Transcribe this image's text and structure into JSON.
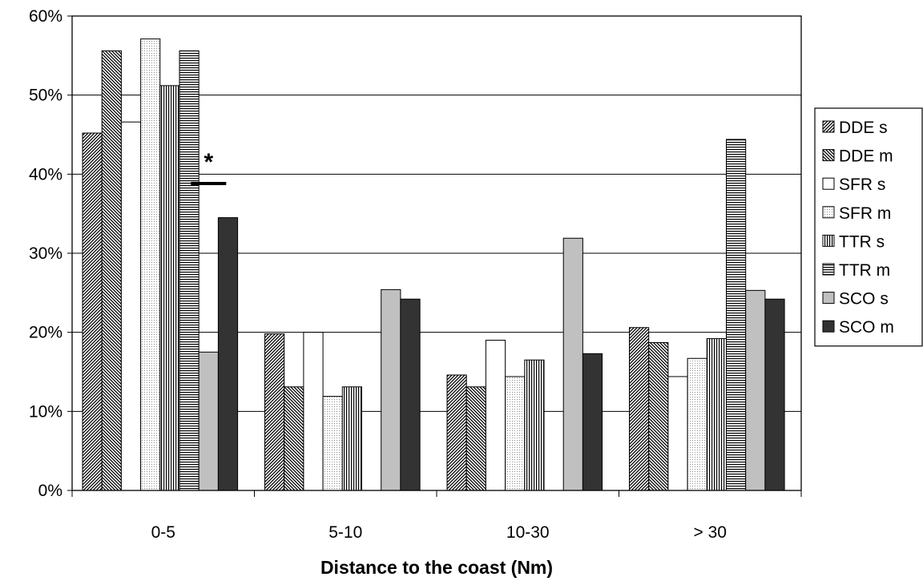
{
  "chart_data": {
    "type": "bar",
    "title": "",
    "xlabel": "Distance to the coast (Nm)",
    "ylabel": "",
    "categories": [
      "0-5",
      "5-10",
      "10-30",
      "> 30"
    ],
    "ylim": [
      0,
      60
    ],
    "yticks": [
      "0%",
      "10%",
      "20%",
      "30%",
      "40%",
      "50%",
      "60%"
    ],
    "grid": "horizontal",
    "legend_position": "right",
    "series": [
      {
        "name": "DDE s",
        "values": [
          45.2,
          19.8,
          14.6,
          20.6
        ],
        "fill": "hatch-fwd"
      },
      {
        "name": "DDE m",
        "values": [
          55.6,
          13.1,
          13.1,
          18.7
        ],
        "fill": "hatch-back"
      },
      {
        "name": "SFR s",
        "values": [
          46.6,
          20.0,
          19.0,
          14.4
        ],
        "fill": "white"
      },
      {
        "name": "SFR m",
        "values": [
          57.1,
          11.9,
          14.4,
          16.7
        ],
        "fill": "dots"
      },
      {
        "name": "TTR s",
        "values": [
          51.2,
          13.1,
          16.5,
          19.2
        ],
        "fill": "vlines"
      },
      {
        "name": "TTR m",
        "values": [
          55.6,
          0,
          0,
          44.4
        ],
        "fill": "hlines"
      },
      {
        "name": "SCO s",
        "values": [
          17.5,
          25.4,
          31.9,
          25.3
        ],
        "fill": "#c0c0c0"
      },
      {
        "name": "SCO m",
        "values": [
          34.5,
          24.2,
          17.3,
          24.2
        ],
        "fill": "#333333"
      }
    ],
    "annotations": [
      {
        "text": "*",
        "category": "0-5"
      }
    ],
    "colors": {
      "grid": "#000000",
      "axis": "#000000",
      "sco_s": "#c0c0c0",
      "sco_m": "#333333"
    }
  }
}
